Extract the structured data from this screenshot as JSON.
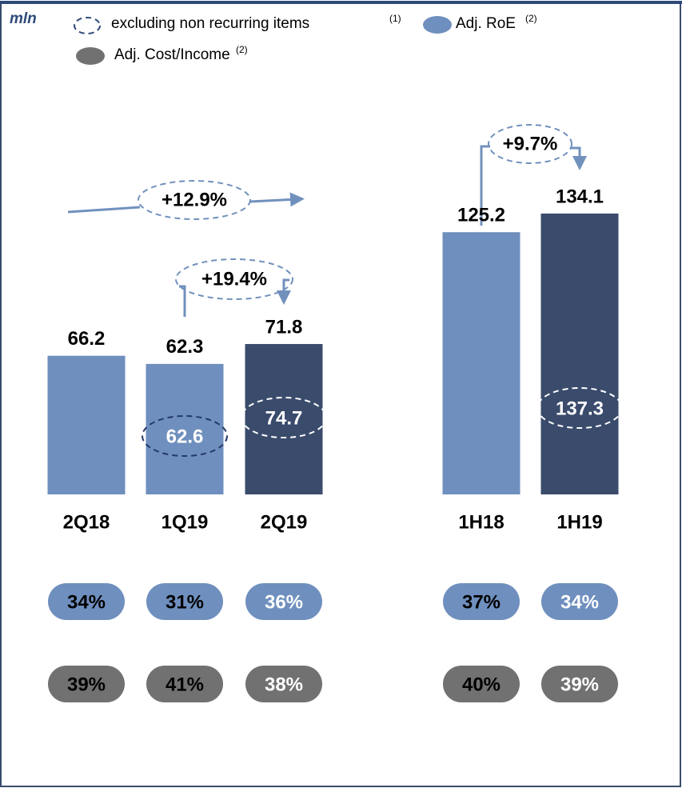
{
  "chart_data": {
    "type": "bar",
    "unit": "mln",
    "categories": [
      "2Q18",
      "1Q19",
      "2Q19",
      "1H18",
      "1H19"
    ],
    "values": [
      66.2,
      62.3,
      71.8,
      125.2,
      134.1
    ],
    "colors": [
      "#6f8fbe",
      "#6f8fbe",
      "#3a4b6c",
      "#6f8fbe",
      "#3a4b6c"
    ],
    "excluding": {
      "name": "excluding non recurring items",
      "note": "(1)",
      "values": [
        null,
        62.6,
        74.7,
        null,
        137.3
      ]
    },
    "annotations": [
      "+12.9%",
      "+19.4%",
      "+9.7%"
    ],
    "ratios": [
      {
        "name": "Adj. RoE",
        "note": "(2)",
        "color": "#6f8fbe",
        "values": [
          34,
          31,
          36,
          37,
          34
        ],
        "value_labels": [
          "34%",
          "31%",
          "36%",
          "37%",
          "34%"
        ]
      },
      {
        "name": "Adj. Cost/Income",
        "note": "(2)",
        "color": "#717171",
        "values": [
          39,
          41,
          38,
          40,
          39
        ],
        "value_labels": [
          "39%",
          "41%",
          "38%",
          "40%",
          "39%"
        ]
      }
    ]
  }
}
